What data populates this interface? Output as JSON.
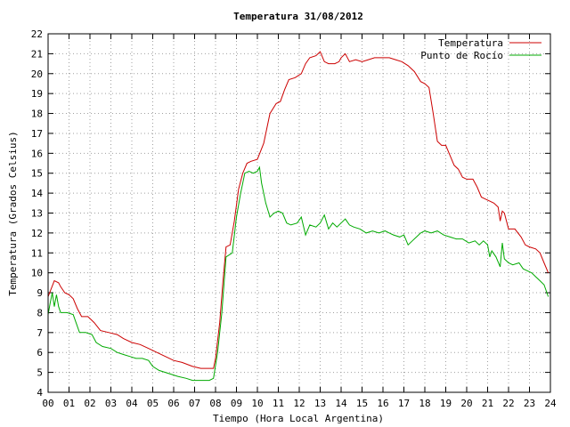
{
  "chart_data": {
    "type": "line",
    "title": "Temperatura 31/08/2012",
    "xlabel": "Tiempo (Hora Local Argentina)",
    "ylabel": "Temperatura (Grados Celsius)",
    "xlim": [
      0,
      24
    ],
    "ylim": [
      4,
      22
    ],
    "x_ticks": [
      "00",
      "01",
      "02",
      "03",
      "04",
      "05",
      "06",
      "07",
      "08",
      "09",
      "10",
      "11",
      "12",
      "13",
      "14",
      "15",
      "16",
      "17",
      "18",
      "19",
      "20",
      "21",
      "22",
      "23",
      "24"
    ],
    "y_ticks": [
      "4",
      "5",
      "6",
      "7",
      "8",
      "9",
      "10",
      "11",
      "12",
      "13",
      "14",
      "15",
      "16",
      "17",
      "18",
      "19",
      "20",
      "21",
      "22"
    ],
    "grid": true,
    "legend_position": "top-right",
    "series": [
      {
        "name": "Temperatura",
        "color": "#cc0000",
        "points": [
          [
            0.0,
            8.8
          ],
          [
            0.15,
            9.2
          ],
          [
            0.3,
            9.6
          ],
          [
            0.5,
            9.5
          ],
          [
            0.6,
            9.3
          ],
          [
            0.8,
            9.0
          ],
          [
            1.0,
            8.9
          ],
          [
            1.2,
            8.7
          ],
          [
            1.4,
            8.2
          ],
          [
            1.6,
            7.8
          ],
          [
            1.9,
            7.8
          ],
          [
            2.2,
            7.5
          ],
          [
            2.5,
            7.1
          ],
          [
            2.9,
            7.0
          ],
          [
            3.3,
            6.9
          ],
          [
            3.6,
            6.7
          ],
          [
            4.0,
            6.5
          ],
          [
            4.4,
            6.4
          ],
          [
            4.8,
            6.2
          ],
          [
            5.2,
            6.0
          ],
          [
            5.6,
            5.8
          ],
          [
            6.0,
            5.6
          ],
          [
            6.4,
            5.5
          ],
          [
            6.9,
            5.3
          ],
          [
            7.3,
            5.2
          ],
          [
            7.6,
            5.2
          ],
          [
            7.9,
            5.2
          ],
          [
            8.0,
            5.7
          ],
          [
            8.2,
            7.5
          ],
          [
            8.35,
            9.5
          ],
          [
            8.5,
            11.3
          ],
          [
            8.7,
            11.4
          ],
          [
            8.9,
            12.6
          ],
          [
            9.1,
            14.2
          ],
          [
            9.3,
            15.0
          ],
          [
            9.5,
            15.5
          ],
          [
            9.7,
            15.6
          ],
          [
            10.0,
            15.7
          ],
          [
            10.3,
            16.5
          ],
          [
            10.6,
            18.0
          ],
          [
            10.9,
            18.5
          ],
          [
            11.1,
            18.6
          ],
          [
            11.3,
            19.2
          ],
          [
            11.5,
            19.7
          ],
          [
            11.8,
            19.8
          ],
          [
            12.1,
            20.0
          ],
          [
            12.3,
            20.5
          ],
          [
            12.5,
            20.8
          ],
          [
            12.8,
            20.9
          ],
          [
            13.0,
            21.1
          ],
          [
            13.2,
            20.6
          ],
          [
            13.4,
            20.5
          ],
          [
            13.7,
            20.5
          ],
          [
            13.9,
            20.6
          ],
          [
            14.0,
            20.8
          ],
          [
            14.2,
            21.0
          ],
          [
            14.4,
            20.6
          ],
          [
            14.7,
            20.7
          ],
          [
            15.0,
            20.6
          ],
          [
            15.3,
            20.7
          ],
          [
            15.6,
            20.8
          ],
          [
            16.0,
            20.8
          ],
          [
            16.3,
            20.8
          ],
          [
            16.6,
            20.7
          ],
          [
            16.9,
            20.6
          ],
          [
            17.2,
            20.4
          ],
          [
            17.5,
            20.1
          ],
          [
            17.8,
            19.6
          ],
          [
            18.0,
            19.5
          ],
          [
            18.2,
            19.3
          ],
          [
            18.4,
            18.0
          ],
          [
            18.6,
            16.6
          ],
          [
            18.8,
            16.4
          ],
          [
            19.0,
            16.4
          ],
          [
            19.2,
            15.9
          ],
          [
            19.4,
            15.4
          ],
          [
            19.6,
            15.2
          ],
          [
            19.8,
            14.8
          ],
          [
            20.0,
            14.7
          ],
          [
            20.3,
            14.7
          ],
          [
            20.5,
            14.3
          ],
          [
            20.7,
            13.8
          ],
          [
            20.9,
            13.7
          ],
          [
            21.1,
            13.6
          ],
          [
            21.3,
            13.5
          ],
          [
            21.5,
            13.3
          ],
          [
            21.6,
            12.6
          ],
          [
            21.7,
            13.1
          ],
          [
            21.8,
            13.0
          ],
          [
            22.0,
            12.2
          ],
          [
            22.3,
            12.2
          ],
          [
            22.6,
            11.8
          ],
          [
            22.8,
            11.4
          ],
          [
            23.0,
            11.3
          ],
          [
            23.3,
            11.2
          ],
          [
            23.5,
            11.0
          ],
          [
            23.7,
            10.5
          ],
          [
            23.9,
            10.0
          ]
        ]
      },
      {
        "name": "Punto de Rocío",
        "color": "#00aa00",
        "points": [
          [
            0.0,
            7.9
          ],
          [
            0.1,
            8.5
          ],
          [
            0.2,
            9.0
          ],
          [
            0.3,
            8.3
          ],
          [
            0.4,
            8.9
          ],
          [
            0.5,
            8.3
          ],
          [
            0.6,
            8.0
          ],
          [
            0.9,
            8.0
          ],
          [
            1.2,
            7.9
          ],
          [
            1.5,
            7.0
          ],
          [
            1.8,
            7.0
          ],
          [
            2.1,
            6.9
          ],
          [
            2.3,
            6.5
          ],
          [
            2.6,
            6.3
          ],
          [
            3.0,
            6.2
          ],
          [
            3.3,
            6.0
          ],
          [
            3.6,
            5.9
          ],
          [
            3.9,
            5.8
          ],
          [
            4.2,
            5.7
          ],
          [
            4.5,
            5.7
          ],
          [
            4.8,
            5.6
          ],
          [
            5.0,
            5.3
          ],
          [
            5.3,
            5.1
          ],
          [
            5.6,
            5.0
          ],
          [
            5.9,
            4.9
          ],
          [
            6.2,
            4.8
          ],
          [
            6.6,
            4.7
          ],
          [
            6.9,
            4.6
          ],
          [
            7.3,
            4.6
          ],
          [
            7.7,
            4.6
          ],
          [
            7.9,
            4.7
          ],
          [
            8.1,
            6.0
          ],
          [
            8.3,
            8.0
          ],
          [
            8.5,
            10.8
          ],
          [
            8.8,
            11.0
          ],
          [
            9.0,
            12.8
          ],
          [
            9.2,
            14.0
          ],
          [
            9.4,
            15.0
          ],
          [
            9.6,
            15.1
          ],
          [
            9.8,
            15.0
          ],
          [
            10.0,
            15.1
          ],
          [
            10.1,
            15.3
          ],
          [
            10.2,
            14.5
          ],
          [
            10.4,
            13.5
          ],
          [
            10.6,
            12.8
          ],
          [
            10.8,
            13.0
          ],
          [
            11.0,
            13.1
          ],
          [
            11.2,
            13.0
          ],
          [
            11.4,
            12.5
          ],
          [
            11.6,
            12.4
          ],
          [
            11.9,
            12.5
          ],
          [
            12.1,
            12.8
          ],
          [
            12.3,
            11.9
          ],
          [
            12.5,
            12.4
          ],
          [
            12.8,
            12.3
          ],
          [
            13.0,
            12.5
          ],
          [
            13.2,
            12.9
          ],
          [
            13.4,
            12.2
          ],
          [
            13.6,
            12.5
          ],
          [
            13.8,
            12.3
          ],
          [
            14.0,
            12.5
          ],
          [
            14.2,
            12.7
          ],
          [
            14.4,
            12.4
          ],
          [
            14.6,
            12.3
          ],
          [
            14.9,
            12.2
          ],
          [
            15.2,
            12.0
          ],
          [
            15.5,
            12.1
          ],
          [
            15.8,
            12.0
          ],
          [
            16.1,
            12.1
          ],
          [
            16.3,
            12.0
          ],
          [
            16.5,
            11.9
          ],
          [
            16.8,
            11.8
          ],
          [
            17.0,
            11.9
          ],
          [
            17.2,
            11.4
          ],
          [
            17.4,
            11.6
          ],
          [
            17.6,
            11.8
          ],
          [
            17.8,
            12.0
          ],
          [
            18.0,
            12.1
          ],
          [
            18.3,
            12.0
          ],
          [
            18.6,
            12.1
          ],
          [
            18.9,
            11.9
          ],
          [
            19.2,
            11.8
          ],
          [
            19.5,
            11.7
          ],
          [
            19.8,
            11.7
          ],
          [
            20.1,
            11.5
          ],
          [
            20.4,
            11.6
          ],
          [
            20.6,
            11.4
          ],
          [
            20.8,
            11.6
          ],
          [
            21.0,
            11.4
          ],
          [
            21.1,
            10.8
          ],
          [
            21.2,
            11.1
          ],
          [
            21.4,
            10.8
          ],
          [
            21.6,
            10.3
          ],
          [
            21.7,
            11.5
          ],
          [
            21.8,
            10.7
          ],
          [
            22.0,
            10.5
          ],
          [
            22.2,
            10.4
          ],
          [
            22.5,
            10.5
          ],
          [
            22.7,
            10.2
          ],
          [
            22.9,
            10.1
          ],
          [
            23.1,
            10.0
          ],
          [
            23.3,
            9.8
          ],
          [
            23.5,
            9.6
          ],
          [
            23.7,
            9.4
          ],
          [
            23.9,
            8.8
          ]
        ]
      }
    ]
  }
}
